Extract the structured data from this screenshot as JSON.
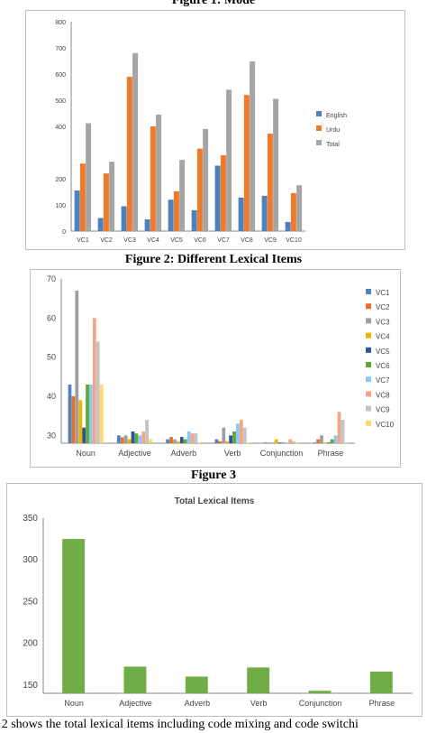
{
  "captions": {
    "fig1": "Figure 1: Mode",
    "fig2": "Figure 2: Different Lexical Items",
    "fig3": "Figure 3"
  },
  "footer_text": "e 2 shows the total lexical items including code mixing and code switchi",
  "colors": {
    "english": "#4f81bd",
    "urdu": "#f07a2a",
    "total": "#a5a5a5",
    "vc1": "#4f81bd",
    "vc2": "#e8702a",
    "vc3": "#9e9e9e",
    "vc4": "#f0b400",
    "vc5": "#2f5597",
    "vc6": "#5fa63a",
    "vc7": "#8fc6f0",
    "vc8": "#f4a585",
    "vc9": "#c4c4c4",
    "vc10": "#ffd966",
    "total_lexical": "#70ad47"
  },
  "chart_data": [
    {
      "type": "bar",
      "categories": [
        "VC1",
        "VC2",
        "VC3",
        "VC4",
        "VC5",
        "VC6",
        "VC7",
        "VC8",
        "VC9",
        "VC10"
      ],
      "y_ticks": [
        "0",
        "100",
        "200",
        "400",
        "500",
        "600",
        "700",
        "800"
      ],
      "ylim": [
        0,
        800
      ],
      "legend_position": "right",
      "series": [
        {
          "name": "English",
          "values": [
            155,
            50,
            95,
            45,
            120,
            80,
            250,
            128,
            135,
            35
          ]
        },
        {
          "name": "Urdu",
          "values": [
            258,
            220,
            590,
            400,
            152,
            315,
            290,
            520,
            372,
            145
          ]
        },
        {
          "name": "Total",
          "values": [
            412,
            265,
            680,
            445,
            272,
            390,
            540,
            648,
            505,
            175
          ]
        }
      ]
    },
    {
      "type": "bar",
      "categories": [
        "Noun",
        "Adjective",
        "Adverb",
        "Verb",
        "Conjunction",
        "Phrase"
      ],
      "y_ticks": [
        "30",
        "40",
        "50",
        "60",
        "70"
      ],
      "ylim": [
        28,
        70
      ],
      "legend_position": "right",
      "series": [
        {
          "name": "VC1",
          "values": [
            43,
            30,
            29,
            29,
            28,
            28
          ]
        },
        {
          "name": "VC2",
          "values": [
            40,
            29.5,
            29.6,
            28.5,
            28,
            29
          ]
        },
        {
          "name": "VC3",
          "values": [
            67,
            30,
            29,
            32,
            28,
            30
          ]
        },
        {
          "name": "VC4",
          "values": [
            39,
            29,
            28.5,
            28.5,
            29,
            28
          ]
        },
        {
          "name": "VC5",
          "values": [
            32,
            31,
            29.6,
            30,
            28,
            28
          ]
        },
        {
          "name": "VC6",
          "values": [
            43,
            30.5,
            29,
            31,
            28,
            29
          ]
        },
        {
          "name": "VC7",
          "values": [
            43,
            30,
            31,
            33,
            28,
            30
          ]
        },
        {
          "name": "VC8",
          "values": [
            60,
            31,
            30.5,
            34,
            29,
            36
          ]
        },
        {
          "name": "VC9",
          "values": [
            54,
            34,
            30.5,
            32,
            28.5,
            34
          ]
        },
        {
          "name": "VC10",
          "values": [
            43,
            29,
            28,
            28,
            28,
            28
          ]
        }
      ]
    },
    {
      "type": "bar",
      "title": "Total Lexical Items",
      "categories": [
        "Noun",
        "Adjective",
        "Adverb",
        "Verb",
        "Conjunction",
        "Phrase"
      ],
      "y_ticks": [
        "150",
        "200",
        "250",
        "300",
        "350"
      ],
      "ylim": [
        140,
        350
      ],
      "series": [
        {
          "values": [
            325,
            172,
            160,
            171,
            143,
            166
          ]
        }
      ]
    }
  ]
}
